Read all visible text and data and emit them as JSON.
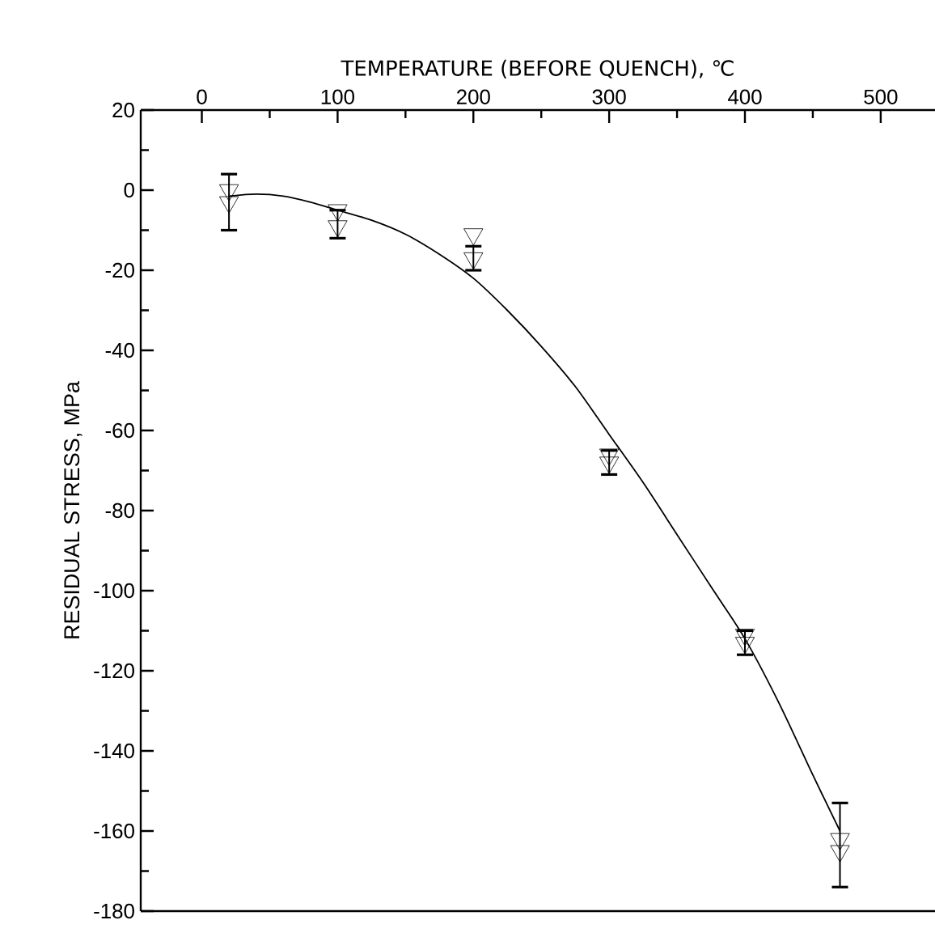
{
  "chart_data": {
    "type": "scatter",
    "xlabel": "TEMPERATURE (BEFORE QUENCH), ℃",
    "ylabel": "RESIDUAL STRESS, MPa",
    "xlim": [
      -45,
      540
    ],
    "ylim": [
      -180,
      20
    ],
    "xticks": [
      0,
      100,
      200,
      300,
      400,
      500
    ],
    "yticks": [
      -180,
      -160,
      -140,
      -120,
      -100,
      -80,
      -60,
      -40,
      -20,
      0,
      20
    ],
    "marker": "triangle",
    "x": [
      20,
      100,
      200,
      300,
      400,
      470
    ],
    "series": [
      {
        "color": "#000000",
        "values": [
          0,
          -5,
          -11,
          -66,
          -111,
          -162
        ]
      },
      {
        "color": "#000000",
        "values": [
          -3,
          -9,
          -17,
          -68,
          -113,
          -165
        ],
        "errors": [
          [
            -10,
            4
          ],
          [
            -12,
            -5
          ],
          [
            -20,
            -14
          ],
          [
            -71,
            -65
          ],
          [
            -116,
            -110
          ],
          [
            -174,
            -153
          ]
        ]
      },
      {
        "type": "line",
        "color": "#000000",
        "line_style": "solid",
        "marker": "none",
        "x": [
          20,
          40,
          60,
          80,
          100,
          125,
          150,
          175,
          200,
          225,
          250,
          275,
          300,
          325,
          350,
          375,
          400,
          425,
          450,
          470
        ],
        "values": [
          -1.5,
          -1,
          -1.5,
          -3,
          -5,
          -7.5,
          -11,
          -16,
          -22,
          -30,
          -39,
          -49,
          -61,
          -73,
          -86,
          -99,
          -112,
          -128,
          -146,
          -160
        ]
      }
    ]
  }
}
